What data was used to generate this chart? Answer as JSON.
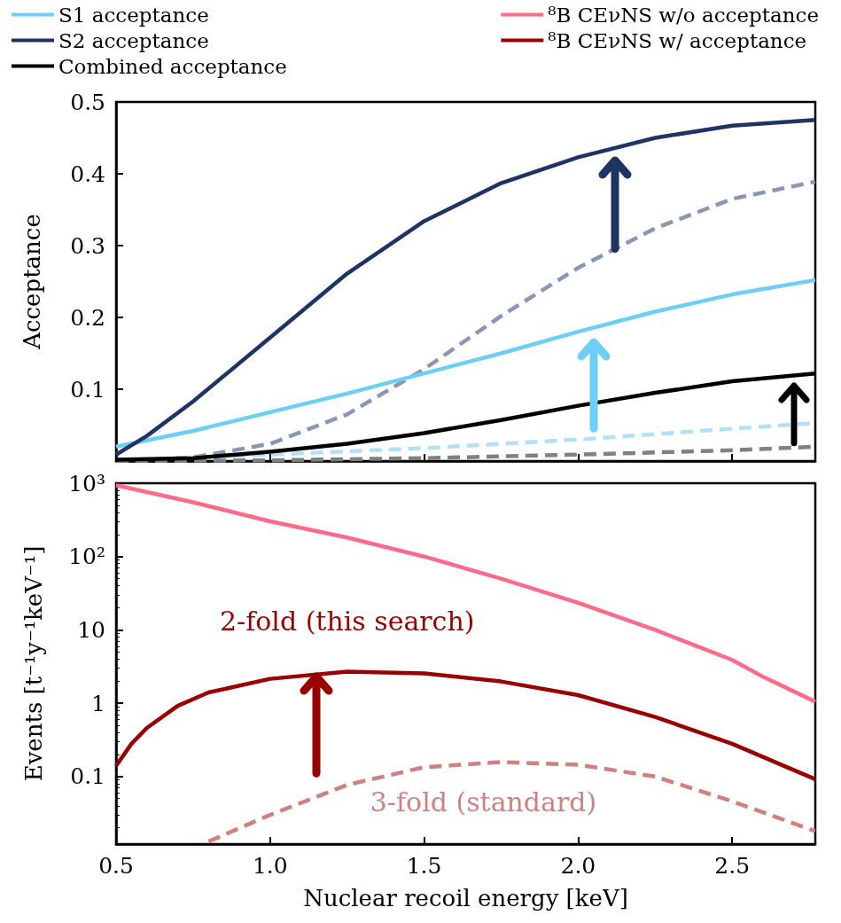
{
  "chart_data": [
    {
      "type": "line",
      "ylabel": "Acceptance",
      "xlim": [
        0.5,
        2.77
      ],
      "xticks": [
        0.5,
        1,
        1.5,
        2,
        2.5
      ],
      "ylim": [
        0,
        0.5
      ],
      "yticks": [
        0.1,
        0.2,
        0.3,
        0.4,
        0.5
      ],
      "tick_labels": "y",
      "legend": "top left",
      "grid": false,
      "marker": "none",
      "series": [
        {
          "name": "S1 acceptance",
          "color": "#6ecff6",
          "x": [
            0.5,
            0.75,
            1,
            1.25,
            1.5,
            1.75,
            2,
            2.25,
            2.5,
            2.77
          ],
          "values": [
            0.02,
            0.042,
            0.068,
            0.094,
            0.122,
            0.15,
            0.18,
            0.208,
            0.232,
            0.252
          ]
        },
        {
          "name": "S2 acceptance",
          "color": "#1f3463",
          "x": [
            0.5,
            0.6,
            0.75,
            1,
            1.25,
            1.5,
            1.75,
            2,
            2.25,
            2.5,
            2.77
          ],
          "values": [
            0.009,
            0.035,
            0.083,
            0.172,
            0.261,
            0.334,
            0.387,
            0.423,
            0.45,
            0.467,
            0.475
          ]
        },
        {
          "name": "Combined acceptance",
          "color": "#000000",
          "x": [
            0.5,
            0.75,
            1,
            1.25,
            1.5,
            1.75,
            2,
            2.25,
            2.5,
            2.77
          ],
          "values": [
            0.002,
            0.004,
            0.013,
            0.024,
            0.039,
            0.057,
            0.077,
            0.095,
            0.111,
            0.122
          ]
        },
        {
          "color": "#8a97b3",
          "line_style": "dashed",
          "x": [
            0.5,
            0.75,
            1,
            1.25,
            1.5,
            1.75,
            2,
            2.25,
            2.5,
            2.77
          ],
          "values": [
            0,
            0.005,
            0.024,
            0.065,
            0.128,
            0.202,
            0.269,
            0.324,
            0.365,
            0.389
          ]
        },
        {
          "color": "#b3e0f7",
          "line_style": "dashed",
          "x": [
            0.5,
            1,
            1.5,
            2,
            2.5,
            2.77
          ],
          "values": [
            0,
            0.009,
            0.018,
            0.03,
            0.045,
            0.053
          ]
        },
        {
          "color": "#808080",
          "line_style": "dashed",
          "x": [
            0.5,
            1,
            1.5,
            2,
            2.5,
            2.77
          ],
          "values": [
            0,
            0.001,
            0.004,
            0.009,
            0.015,
            0.02
          ]
        }
      ]
    },
    {
      "type": "line",
      "xlabel": "Nuclear recoil energy [keV]",
      "ylabel": "Events [t⁻¹y⁻¹keV⁻¹]",
      "log": "y",
      "xlim": [
        0.5,
        2.77
      ],
      "xticks": [
        {
          "value": 0.5,
          "label": "0.5"
        },
        {
          "value": 1,
          "label": "1.0"
        },
        {
          "value": 1.5,
          "label": "1.5"
        },
        {
          "value": 2,
          "label": "2.0"
        },
        {
          "value": 2.5,
          "label": "2.5"
        }
      ],
      "ylim": [
        0.012,
        1000
      ],
      "yticks": [
        {
          "value": 0.1,
          "label": "0.1"
        },
        1,
        10,
        {
          "value": 100,
          "label": "10²"
        },
        {
          "value": 1000,
          "label": "10³"
        }
      ],
      "legend": "top right",
      "grid": false,
      "marker": "none",
      "series": [
        {
          "name": "⁸B CEνNS w/o acceptance",
          "color": "#ff6b8a",
          "x": [
            0.5,
            0.75,
            1,
            1.25,
            1.5,
            1.75,
            2,
            2.25,
            2.5,
            2.6,
            2.77
          ],
          "values": [
            940,
            550,
            302,
            182,
            100,
            50,
            23.4,
            10,
            3.9,
            2.3,
            1.05
          ]
        },
        {
          "name": "⁸B CEνNS w/ acceptance",
          "color": "#990000",
          "x": [
            0.5,
            0.55,
            0.6,
            0.7,
            0.8,
            1,
            1.25,
            1.5,
            1.75,
            2,
            2.25,
            2.5,
            2.77
          ],
          "values": [
            0.14,
            0.28,
            0.46,
            0.92,
            1.4,
            2.15,
            2.7,
            2.55,
            1.98,
            1.29,
            0.65,
            0.28,
            0.092
          ]
        },
        {
          "color": "#d08080",
          "line_style": "dashed",
          "x": [
            0.8,
            1,
            1.25,
            1.5,
            1.75,
            2,
            2.25,
            2.5,
            2.77
          ],
          "values": [
            0.013,
            0.03,
            0.077,
            0.134,
            0.158,
            0.145,
            0.1,
            0.046,
            0.018
          ]
        }
      ],
      "annotations": [
        "2-fold (this search)",
        "3-fold (standard)"
      ]
    }
  ]
}
